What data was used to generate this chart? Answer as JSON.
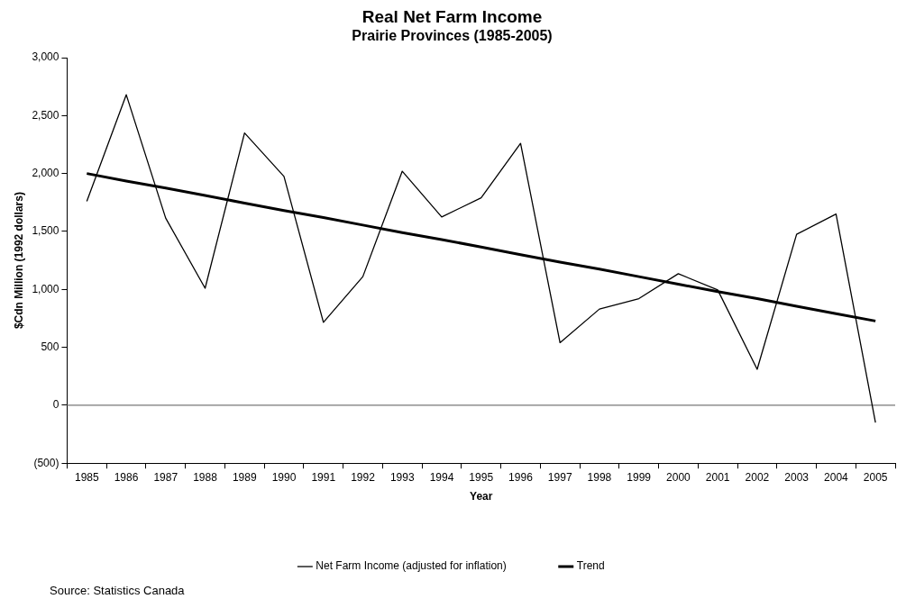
{
  "chart_data": {
    "type": "line",
    "title": "Real Net Farm Income",
    "subtitle": "Prairie Provinces (1985-2005)",
    "xlabel": "Year",
    "ylabel": "$Cdn Million (1992 dollars)",
    "categories": [
      "1985",
      "1986",
      "1987",
      "1988",
      "1989",
      "1990",
      "1991",
      "1992",
      "1993",
      "1994",
      "1995",
      "1996",
      "1997",
      "1998",
      "1999",
      "2000",
      "2001",
      "2002",
      "2003",
      "2004",
      "2005"
    ],
    "series": [
      {
        "name": "Net Farm Income (adjusted for inflation)",
        "color": "#000000",
        "values": [
          1760,
          2680,
          1615,
          1010,
          2350,
          1975,
          715,
          1110,
          2020,
          1625,
          1790,
          2260,
          540,
          830,
          920,
          1135,
          995,
          310,
          1475,
          1650,
          -150
        ]
      },
      {
        "name": "Trend",
        "color": "#000000",
        "values": [
          2000,
          1935,
          1875,
          1810,
          1745,
          1680,
          1620,
          1555,
          1490,
          1430,
          1365,
          1300,
          1235,
          1175,
          1110,
          1045,
          980,
          920,
          855,
          790,
          727
        ]
      }
    ],
    "ylim": [
      -500,
      3000
    ],
    "yticks": [
      {
        "value": -500,
        "label": "(500)"
      },
      0,
      500,
      {
        "value": 1000,
        "label": "1,000"
      },
      {
        "value": 1500,
        "label": "1,500"
      },
      {
        "value": 2000,
        "label": "2,000"
      },
      {
        "value": 2500,
        "label": "2,500"
      },
      {
        "value": 3000,
        "label": "3,000"
      }
    ],
    "ref_lines": [
      {
        "axis": "y",
        "value": 0,
        "color": "#777777"
      }
    ],
    "grid": false,
    "legend": "bottom",
    "marker": "none",
    "line_style": "solid",
    "annotations": [
      "Source: Statistics Canada"
    ]
  }
}
